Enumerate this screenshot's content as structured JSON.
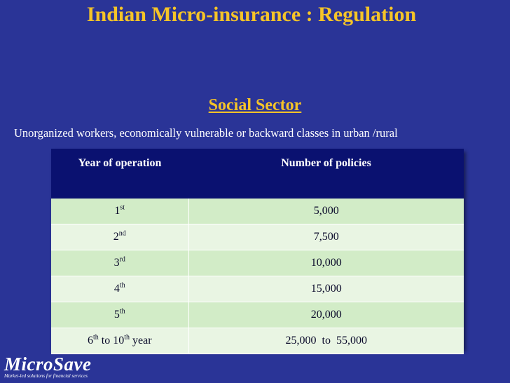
{
  "title": "Indian Micro-insurance : Regulation",
  "section_title": "Social Sector",
  "description": "Unorganized workers, economically vulnerable or  backward classes in urban /rural",
  "table": {
    "headers": [
      "Year of operation",
      "Number of  policies"
    ],
    "rows": [
      {
        "year_num": "1",
        "year_sup": "st",
        "year_suffix": "",
        "policies": "5,000"
      },
      {
        "year_num": "2",
        "year_sup": "nd",
        "year_suffix": "",
        "policies": "7,500"
      },
      {
        "year_num": "3",
        "year_sup": "rd",
        "year_suffix": "",
        "policies": "10,000"
      },
      {
        "year_num": "4",
        "year_sup": "th",
        "year_suffix": "",
        "policies": "15,000"
      },
      {
        "year_num": "5",
        "year_sup": "th",
        "year_suffix": "",
        "policies": "20,000"
      }
    ],
    "last_row": {
      "from_num": "6",
      "from_sup": "th",
      "to_word": " to ",
      "to_num": "10",
      "to_sup": "th",
      "year_word": " year",
      "policies": "25,000  to  55,000"
    }
  },
  "logo": {
    "name": "MicroSave",
    "tagline": "Market-led solutions for financial services"
  },
  "colors": {
    "background": "#2a3497",
    "title": "#f5c428",
    "table_header": "#0a1170",
    "row_odd": "#d2ecc7",
    "row_even": "#e9f5e3"
  }
}
